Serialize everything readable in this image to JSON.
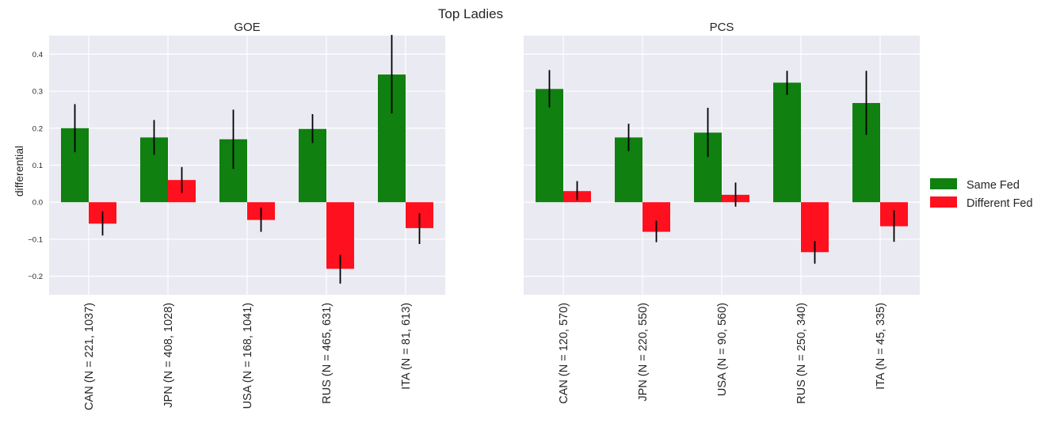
{
  "title": "Top Ladies",
  "ylabel": "differential",
  "colors": {
    "same": "#108010",
    "different": "#ff101e"
  },
  "legend": {
    "position": "center-right",
    "items": [
      "Same Fed",
      "Different Fed"
    ]
  },
  "chart_data": [
    {
      "type": "bar",
      "title": "GOE",
      "ylim": [
        -0.25,
        0.45
      ],
      "yticks": [
        -0.2,
        -0.1,
        0.0,
        0.1,
        0.2,
        0.3,
        0.4
      ],
      "yticklabels": [
        "−0.2",
        "−0.1",
        "0.0",
        "0.1",
        "0.2",
        "0.3",
        "0.4"
      ],
      "categories": [
        "CAN (N = 221, 1037)",
        "JPN (N = 408, 1028)",
        "USA (N = 168, 1041)",
        "RUS (N = 465, 631)",
        "ITA (N = 81, 613)"
      ],
      "series": [
        {
          "name": "Same Fed",
          "values": [
            0.2,
            0.175,
            0.17,
            0.198,
            0.345
          ],
          "err_low": [
            0.135,
            0.128,
            0.09,
            0.16,
            0.24
          ],
          "err_high": [
            0.265,
            0.222,
            0.25,
            0.238,
            0.452
          ]
        },
        {
          "name": "Different Fed",
          "values": [
            -0.058,
            0.06,
            -0.048,
            -0.18,
            -0.07
          ],
          "err_low": [
            -0.09,
            0.025,
            -0.08,
            -0.22,
            -0.113
          ],
          "err_high": [
            -0.025,
            0.095,
            -0.015,
            -0.142,
            -0.03
          ]
        }
      ],
      "ylabel": "differential",
      "grid": true
    },
    {
      "type": "bar",
      "title": "PCS",
      "ylim": [
        -0.25,
        0.45
      ],
      "yticks": [
        -0.2,
        -0.1,
        0.0,
        0.1,
        0.2,
        0.3,
        0.4
      ],
      "yticklabels": [
        "",
        "",
        "",
        "",
        "",
        "",
        ""
      ],
      "categories": [
        "CAN (N = 120, 570)",
        "JPN (N = 220, 550)",
        "USA (N = 90, 560)",
        "RUS (N = 250, 340)",
        "ITA (N = 45, 335)"
      ],
      "series": [
        {
          "name": "Same Fed",
          "values": [
            0.306,
            0.175,
            0.188,
            0.323,
            0.268
          ],
          "err_low": [
            0.256,
            0.138,
            0.122,
            0.29,
            0.182
          ],
          "err_high": [
            0.357,
            0.212,
            0.255,
            0.355,
            0.355
          ]
        },
        {
          "name": "Different Fed",
          "values": [
            0.03,
            -0.08,
            0.02,
            -0.135,
            -0.065
          ],
          "err_low": [
            0.005,
            -0.108,
            -0.012,
            -0.166,
            -0.107
          ],
          "err_high": [
            0.057,
            -0.05,
            0.053,
            -0.105,
            -0.022
          ]
        }
      ],
      "grid": true
    }
  ]
}
